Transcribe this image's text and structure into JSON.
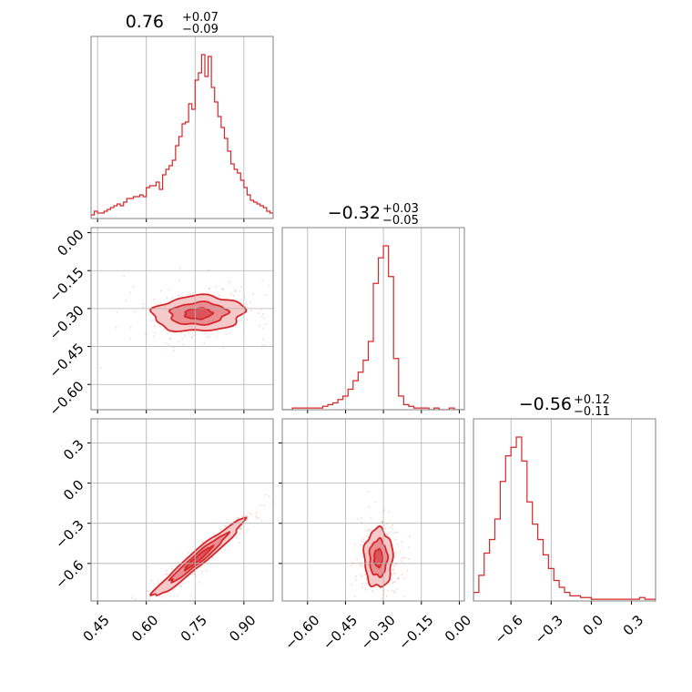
{
  "colors": {
    "series": "#d62728",
    "fill_light": "#f6c9cb",
    "fill_mid": "#e98f93",
    "fill_dark": "#dd555c",
    "grid": "#b0b0b0",
    "frame": "#808080"
  },
  "chart_data": {
    "type": "corner",
    "grid": true,
    "parameters": [
      {
        "median": 0.76,
        "plus": "+0.07",
        "minus": "−0.09",
        "title_main": "0.76",
        "title_sup": "+0.07",
        "title_sub": "−0.09",
        "range": [
          0.43,
          0.99
        ],
        "ticks": [
          0.45,
          0.6,
          0.75,
          0.9
        ],
        "tick_labels": [
          "0.45",
          "0.60",
          "0.75",
          "0.90"
        ]
      },
      {
        "median": -0.32,
        "plus": "+0.03",
        "minus": "−0.05",
        "title_main": "−0.32",
        "title_sup": "+0.03",
        "title_sub": "−0.05",
        "range": [
          -0.7,
          0.02
        ],
        "ticks": [
          -0.6,
          -0.45,
          -0.3,
          -0.15,
          0.0
        ],
        "tick_labels": [
          "−0.60",
          "−0.45",
          "−0.30",
          "−0.15",
          "0.00"
        ]
      },
      {
        "median": -0.56,
        "plus": "+0.12",
        "minus": "−0.11",
        "title_main": "−0.56",
        "title_sup": "+0.12",
        "title_sub": "−0.11",
        "range": [
          -0.88,
          0.48
        ],
        "ticks": [
          -0.6,
          -0.3,
          0.0,
          0.3
        ],
        "tick_labels": [
          "−0.6",
          "−0.3",
          "0.0",
          "0.3"
        ]
      }
    ],
    "histograms": [
      {
        "param": 0,
        "x": [
          0.43,
          0.44,
          0.45,
          0.46,
          0.47,
          0.48,
          0.49,
          0.5,
          0.51,
          0.52,
          0.53,
          0.54,
          0.55,
          0.56,
          0.57,
          0.58,
          0.59,
          0.6,
          0.61,
          0.62,
          0.63,
          0.64,
          0.65,
          0.66,
          0.67,
          0.68,
          0.69,
          0.7,
          0.71,
          0.72,
          0.73,
          0.74,
          0.75,
          0.76,
          0.77,
          0.78,
          0.79,
          0.8,
          0.81,
          0.82,
          0.83,
          0.84,
          0.85,
          0.86,
          0.87,
          0.88,
          0.89,
          0.9,
          0.91,
          0.92,
          0.93,
          0.94,
          0.95,
          0.96,
          0.97,
          0.98
        ],
        "counts": [
          2,
          4,
          3,
          3,
          4,
          5,
          6,
          7,
          8,
          7,
          9,
          11,
          11,
          12,
          12,
          13,
          12,
          17,
          18,
          18,
          20,
          16,
          24,
          27,
          29,
          32,
          40,
          45,
          52,
          53,
          63,
          60,
          76,
          80,
          90,
          78,
          89,
          72,
          64,
          56,
          50,
          44,
          37,
          30,
          27,
          25,
          21,
          17,
          13,
          10,
          9,
          8,
          7,
          6,
          4,
          3
        ]
      },
      {
        "param": 1,
        "x": [
          -0.7,
          -0.68,
          -0.66,
          -0.64,
          -0.62,
          -0.6,
          -0.58,
          -0.56,
          -0.54,
          -0.52,
          -0.5,
          -0.48,
          -0.46,
          -0.44,
          -0.42,
          -0.4,
          -0.38,
          -0.36,
          -0.34,
          -0.32,
          -0.3,
          -0.28,
          -0.26,
          -0.24,
          -0.22,
          -0.2,
          -0.18,
          -0.16,
          -0.14,
          -0.12,
          -0.1,
          -0.08,
          -0.06,
          -0.04,
          -0.02,
          0.0
        ],
        "counts": [
          0,
          0,
          1,
          1,
          1,
          1,
          1,
          1,
          2,
          3,
          4,
          6,
          8,
          12,
          17,
          22,
          29,
          40,
          74,
          89,
          96,
          78,
          30,
          8,
          3,
          2,
          1,
          1,
          1,
          0,
          1,
          0,
          0,
          1,
          0,
          0
        ]
      },
      {
        "param": 2,
        "x": [
          -0.88,
          -0.84,
          -0.8,
          -0.76,
          -0.72,
          -0.68,
          -0.64,
          -0.6,
          -0.56,
          -0.52,
          -0.48,
          -0.44,
          -0.4,
          -0.36,
          -0.32,
          -0.28,
          -0.24,
          -0.2,
          -0.16,
          -0.12,
          -0.08,
          -0.04,
          0.0,
          0.04,
          0.08,
          0.12,
          0.16,
          0.2,
          0.24,
          0.28,
          0.32,
          0.36,
          0.4,
          0.44
        ],
        "counts": [
          5,
          15,
          28,
          36,
          48,
          70,
          85,
          90,
          96,
          82,
          58,
          45,
          36,
          27,
          19,
          12,
          8,
          5,
          3,
          3,
          2,
          2,
          1,
          1,
          1,
          1,
          1,
          1,
          1,
          1,
          1,
          2,
          1,
          1
        ]
      }
    ],
    "pairs": [
      {
        "x_param": 0,
        "y_param": 1,
        "center": [
          0.76,
          -0.32
        ],
        "sigma": [
          0.07,
          0.035
        ],
        "slope": 0.05,
        "levels_sigma": [
          2.0,
          1.25,
          0.6
        ]
      },
      {
        "x_param": 0,
        "y_param": 2,
        "center": [
          0.76,
          -0.56
        ],
        "sigma": [
          0.07,
          0.035
        ],
        "slope": 2.0,
        "levels_sigma": [
          2.0,
          1.25,
          0.6
        ]
      },
      {
        "x_param": 1,
        "y_param": 2,
        "center": [
          -0.32,
          -0.56
        ],
        "sigma": [
          0.028,
          0.11
        ],
        "slope": 0.0,
        "levels_sigma": [
          2.0,
          1.25,
          0.6
        ]
      }
    ]
  }
}
